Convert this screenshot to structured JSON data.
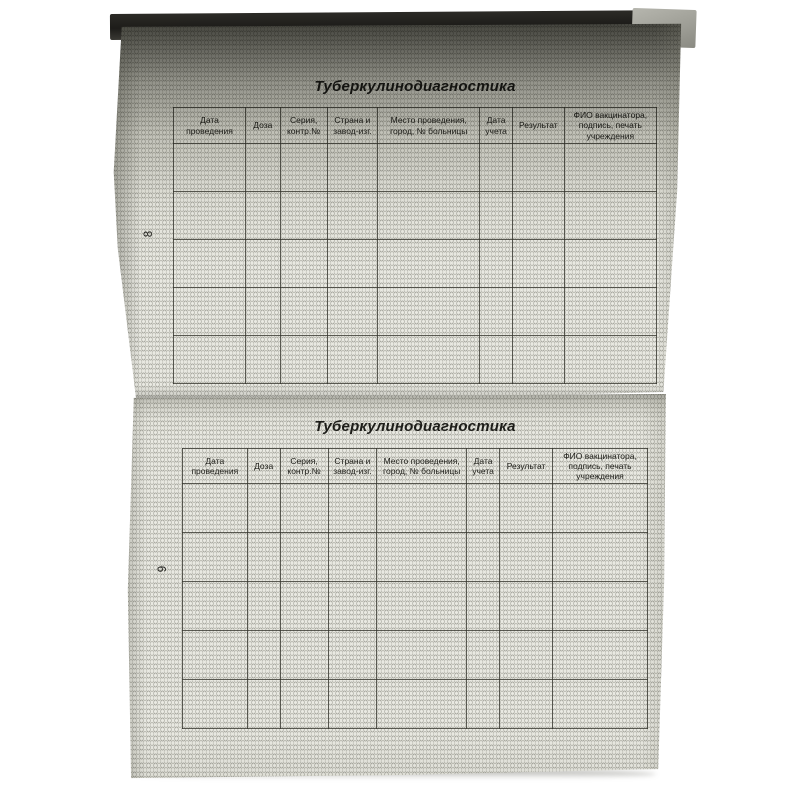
{
  "colors": {
    "background": "#ffffff",
    "page_paper": "#e9e9e2",
    "table_line": "#37372f",
    "text": "#1d1d19",
    "top_edge_shadow": "#1d1c19"
  },
  "pages": [
    {
      "page_number": "8",
      "title": "Туберкулинодиагностика",
      "table": {
        "columns": [
          "Дата проведения",
          "Доза",
          "Серия, контр.№",
          "Страна и завод-изг.",
          "Место проведения, город, № больницы",
          "Дата учета",
          "Результат",
          "ФИО вакцинатора, подпись, печать учреждения"
        ],
        "empty_data_rows": 5
      }
    },
    {
      "page_number": "9",
      "title": "Туберкулинодиагностика",
      "table": {
        "columns": [
          "Дата проведения",
          "Доза",
          "Серия, контр.№",
          "Страна и завод-изг.",
          "Место проведения, город, № больницы",
          "Дата учета",
          "Результат",
          "ФИО вакцинатора, подпись, печать учреждения"
        ],
        "empty_data_rows": 5
      }
    }
  ]
}
